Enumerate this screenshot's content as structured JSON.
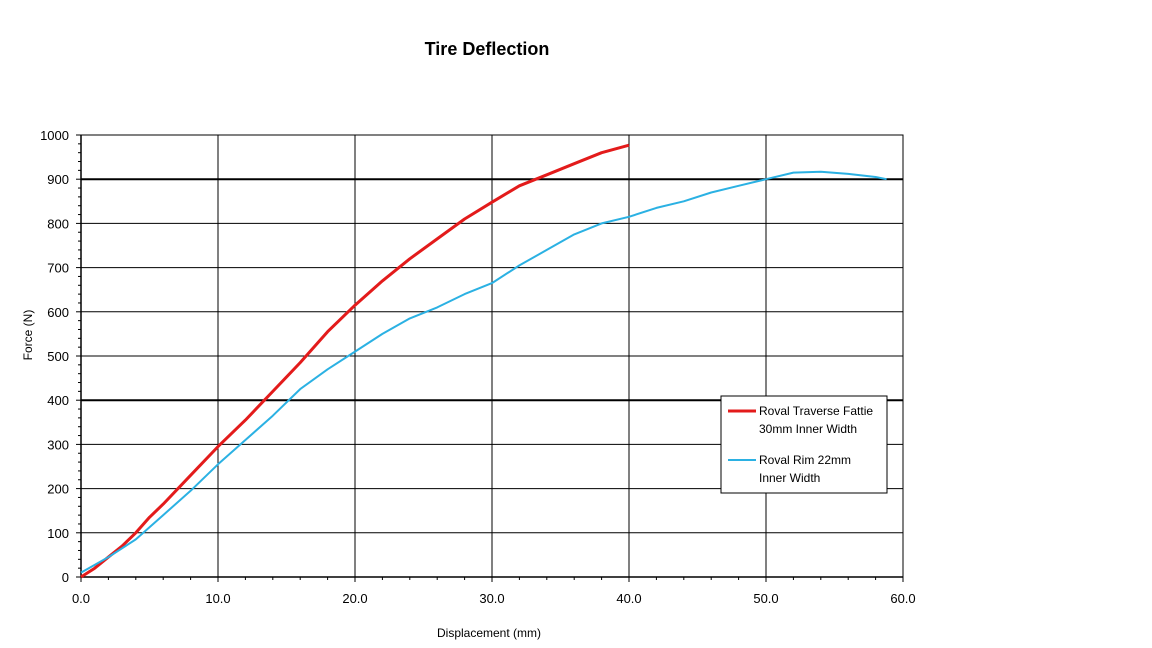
{
  "chart_data": {
    "type": "line",
    "title": "Tire Deflection",
    "xlabel": "Displacement (mm)",
    "ylabel": "Force (N)",
    "xlim": [
      0,
      60
    ],
    "ylim": [
      0,
      1000
    ],
    "x_ticks": [
      0,
      10,
      20,
      30,
      40,
      50,
      60
    ],
    "x_tick_labels": [
      "0.0",
      "10.0",
      "20.0",
      "30.0",
      "40.0",
      "50.0",
      "60.0"
    ],
    "y_ticks": [
      0,
      100,
      200,
      300,
      400,
      500,
      600,
      700,
      800,
      900,
      1000
    ],
    "y_tick_labels": [
      "0",
      "100",
      "200",
      "300",
      "400",
      "500",
      "600",
      "700",
      "800",
      "900",
      "1000"
    ],
    "grid": true,
    "legend_position": "right",
    "series": [
      {
        "name": "Roval Traverse Fattie 30mm Inner Width",
        "legend_lines": [
          "Roval Traverse Fattie",
          "30mm Inner Width"
        ],
        "color": "#e31b1b",
        "x": [
          0,
          1,
          2,
          3,
          4,
          5,
          6,
          8,
          10,
          12,
          14,
          16,
          18,
          20,
          22,
          24,
          26,
          28,
          30,
          32,
          34,
          36,
          38,
          40
        ],
        "y": [
          0,
          20,
          45,
          70,
          100,
          135,
          165,
          230,
          295,
          355,
          420,
          485,
          555,
          615,
          670,
          720,
          765,
          810,
          848,
          885,
          910,
          935,
          960,
          977
        ]
      },
      {
        "name": "Roval Rim 22mm Inner Width",
        "legend_lines": [
          "Roval Rim 22mm",
          "Inner Width"
        ],
        "color": "#2bb1e3",
        "x": [
          0,
          2,
          4,
          6,
          8,
          10,
          12,
          14,
          16,
          18,
          20,
          22,
          24,
          26,
          28,
          30,
          32,
          34,
          36,
          38,
          40,
          42,
          44,
          46,
          48,
          50,
          52,
          54,
          56,
          58,
          58.8
        ],
        "y": [
          10,
          45,
          85,
          140,
          195,
          255,
          310,
          365,
          425,
          470,
          510,
          550,
          585,
          610,
          640,
          665,
          705,
          740,
          775,
          800,
          815,
          835,
          850,
          870,
          885,
          900,
          915,
          917,
          912,
          905,
          900
        ]
      }
    ]
  }
}
